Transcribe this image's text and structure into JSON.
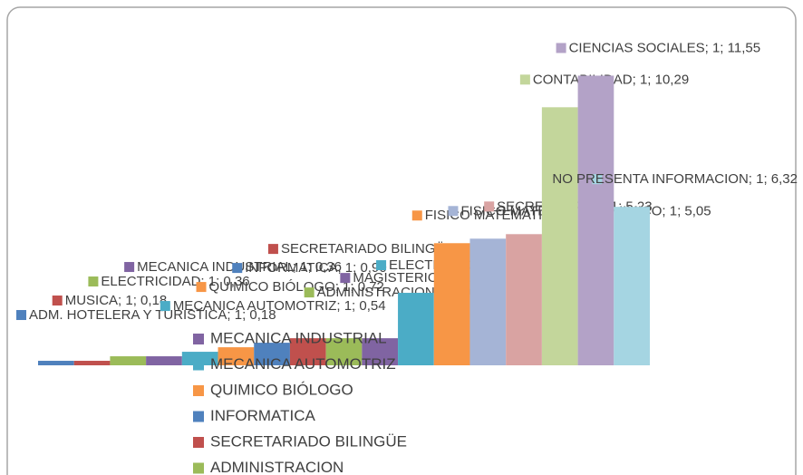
{
  "chart_data": {
    "type": "bar",
    "ylim": [
      0,
      12
    ],
    "series": [
      {
        "name": "ADM. HOTELERA Y TURISTICA",
        "color": "#4f81bd",
        "values": [
          0.18
        ],
        "value_labels": [
          "ADM. HOTELERA Y TURISTICA; 1; 0,18"
        ]
      },
      {
        "name": "MUSICA",
        "color": "#c0504d",
        "values": [
          0.18
        ],
        "value_labels": [
          "MUSICA; 1; 0,18"
        ]
      },
      {
        "name": "ELECTRICIDAD",
        "color": "#9bbb59",
        "values": [
          0.36
        ],
        "value_labels": [
          "ELECTRICIDAD; 1; 0,36"
        ]
      },
      {
        "name": "MECANICA INDUSTRIAL",
        "color": "#8064a2",
        "values": [
          0.36
        ],
        "value_labels": [
          "MECANICA INDUSTRIAL; 1; 0,36"
        ]
      },
      {
        "name": "MECANICA AUTOMOTRIZ",
        "color": "#4bacc6",
        "values": [
          0.54
        ],
        "value_labels": [
          "MECANICA AUTOMOTRIZ; 1; 0,54"
        ]
      },
      {
        "name": "QUIMICO BIÓLOGO",
        "color": "#f79646",
        "values": [
          0.72
        ],
        "value_labels": [
          "QUIMICO BIÓLOGO; 1; 0,72"
        ]
      },
      {
        "name": "INFORMATICA",
        "color": "#4f81bd",
        "values": [
          0.9
        ],
        "value_labels": [
          "INFORMATICA; 1; 0,90"
        ]
      },
      {
        "name": "SECRETARIADO BILINGÜE",
        "color": "#c0504d",
        "values": [
          1.08
        ],
        "value_labels": [
          "SECRETARIADO BILINGÜE; 1; 1,08"
        ]
      },
      {
        "name": "ADMINISTRACION",
        "color": "#9bbb59",
        "values": [
          1.08
        ],
        "value_labels": [
          "ADMINISTRACION; 1; 1,08"
        ]
      },
      {
        "name": "MAGISTERIO",
        "color": "#8064a2",
        "values": [
          1.08
        ],
        "value_labels": [
          "MAGISTERIO; 1; 1,08"
        ]
      },
      {
        "name": "ELECTRONICA",
        "color": "#4bacc6",
        "values": [
          2.89
        ],
        "value_labels": [
          "ELECTRONICA; 1; 2,89"
        ]
      },
      {
        "name": "FISICO MATEMATICO",
        "color": "#f79646",
        "values": [
          4.87
        ],
        "value_labels": [
          "FISICO MATEMATICO; 1; 4,87"
        ]
      },
      {
        "name": "FISICO MATEMATICO QUIMICO",
        "color": "#a5b4d6",
        "values": [
          5.05
        ],
        "value_labels": [
          "FISICO MATEMATICO QUIMICO; 1; 5,05"
        ]
      },
      {
        "name": "SECRETARIADO",
        "color": "#d9a3a2",
        "values": [
          5.23
        ],
        "value_labels": [
          "SECRETARIADO; 1; 5,23"
        ]
      },
      {
        "name": "CONTABILIDAD",
        "color": "#c3d69b",
        "values": [
          10.29
        ],
        "value_labels": [
          "CONTABILIDAD; 1; 10,29"
        ]
      },
      {
        "name": "CIENCIAS SOCIALES",
        "color": "#b3a2c7",
        "values": [
          11.55
        ],
        "value_labels": [
          "CIENCIAS SOCIALES; 1; 11,55"
        ]
      },
      {
        "name": "NO PRESENTA INFORMACION",
        "color": "#a5d5e2",
        "values": [
          6.32
        ],
        "value_labels": [
          "NO PRESENTA INFORMACION; 1; 6,32"
        ]
      }
    ]
  }
}
